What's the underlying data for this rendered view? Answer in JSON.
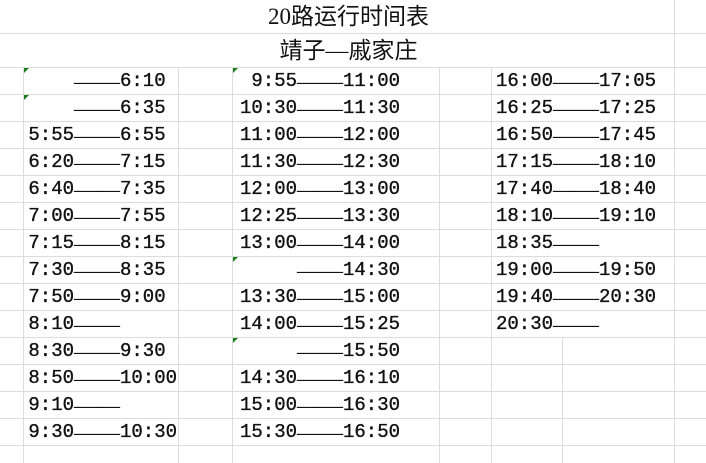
{
  "title": "20路运行时间表",
  "subtitle": "靖子—戚家庄",
  "separator": "——",
  "flag_color": "#1a7f1a",
  "columns": [
    {
      "rows": [
        {
          "dep": "",
          "arr": "6:10",
          "flag": true
        },
        {
          "dep": "",
          "arr": "6:35",
          "flag": true
        },
        {
          "dep": "5:55",
          "arr": "6:55"
        },
        {
          "dep": "6:20",
          "arr": "7:15"
        },
        {
          "dep": "6:40",
          "arr": "7:35"
        },
        {
          "dep": "7:00",
          "arr": "7:55"
        },
        {
          "dep": "7:15",
          "arr": "8:15"
        },
        {
          "dep": "7:30",
          "arr": "8:35"
        },
        {
          "dep": "7:50",
          "arr": "9:00"
        },
        {
          "dep": "8:10",
          "arr": ""
        },
        {
          "dep": "8:30",
          "arr": "9:30"
        },
        {
          "dep": "8:50",
          "arr": "10:00"
        },
        {
          "dep": "9:10",
          "arr": ""
        },
        {
          "dep": "9:30",
          "arr": "10:30"
        }
      ]
    },
    {
      "rows": [
        {
          "dep": "9:55",
          "arr": "11:00",
          "flag": true
        },
        {
          "dep": "10:30",
          "arr": "11:30"
        },
        {
          "dep": "11:00",
          "arr": "12:00"
        },
        {
          "dep": "11:30",
          "arr": "12:30"
        },
        {
          "dep": "12:00",
          "arr": "13:00"
        },
        {
          "dep": "12:25",
          "arr": "13:30"
        },
        {
          "dep": "13:00",
          "arr": "14:00"
        },
        {
          "dep": "",
          "arr": "14:30",
          "flag": true
        },
        {
          "dep": "13:30",
          "arr": "15:00"
        },
        {
          "dep": "14:00",
          "arr": "15:25"
        },
        {
          "dep": "",
          "arr": "15:50",
          "flag": true
        },
        {
          "dep": "14:30",
          "arr": "16:10"
        },
        {
          "dep": "15:00",
          "arr": "16:30"
        },
        {
          "dep": "15:30",
          "arr": "16:50"
        }
      ]
    },
    {
      "rows": [
        {
          "dep": "16:00",
          "arr": "17:05"
        },
        {
          "dep": "16:25",
          "arr": "17:25"
        },
        {
          "dep": "16:50",
          "arr": "17:45"
        },
        {
          "dep": "17:15",
          "arr": "18:10"
        },
        {
          "dep": "17:40",
          "arr": "18:40"
        },
        {
          "dep": "18:10",
          "arr": "19:10"
        },
        {
          "dep": "18:35",
          "arr": ""
        },
        {
          "dep": "19:00",
          "arr": "19:50"
        },
        {
          "dep": "19:40",
          "arr": "20:30"
        },
        {
          "dep": "20:30",
          "arr": ""
        }
      ]
    }
  ]
}
